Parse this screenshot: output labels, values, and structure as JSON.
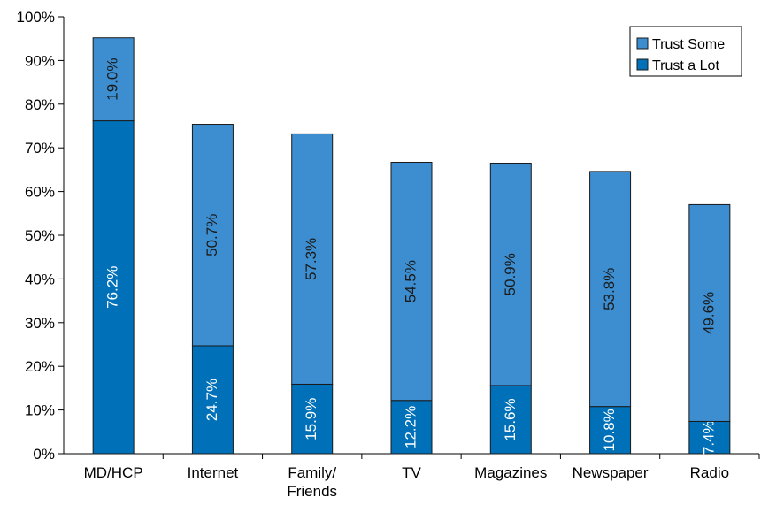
{
  "chart_data": {
    "type": "bar",
    "stacked": true,
    "categories": [
      "MD/HCP",
      "Internet",
      "Family/\nFriends",
      "TV",
      "Magazines",
      "Newspaper",
      "Radio"
    ],
    "series": [
      {
        "name": "Trust a Lot",
        "color": "#0070b8",
        "values": [
          76.2,
          24.7,
          15.9,
          12.2,
          15.6,
          10.8,
          7.4
        ],
        "labels": [
          "76.2%",
          "24.7%",
          "15.9%",
          "12.2%",
          "15.6%",
          "10.8%",
          "7.4%"
        ]
      },
      {
        "name": "Trust Some",
        "color": "#3d8ed0",
        "values": [
          19.0,
          50.7,
          57.3,
          54.5,
          50.9,
          53.8,
          49.6
        ],
        "labels": [
          "19.0%",
          "50.7%",
          "57.3%",
          "54.5%",
          "50.9%",
          "53.8%",
          "49.6%"
        ]
      }
    ],
    "ylim": [
      0,
      100
    ],
    "yticks": [
      "0%",
      "10%",
      "20%",
      "30%",
      "40%",
      "50%",
      "60%",
      "70%",
      "80%",
      "90%",
      "100%"
    ],
    "legend": {
      "placement": "top-right",
      "order": [
        "Trust Some",
        "Trust a Lot"
      ]
    },
    "grid": false,
    "title": "",
    "xlabel": "",
    "ylabel": ""
  }
}
